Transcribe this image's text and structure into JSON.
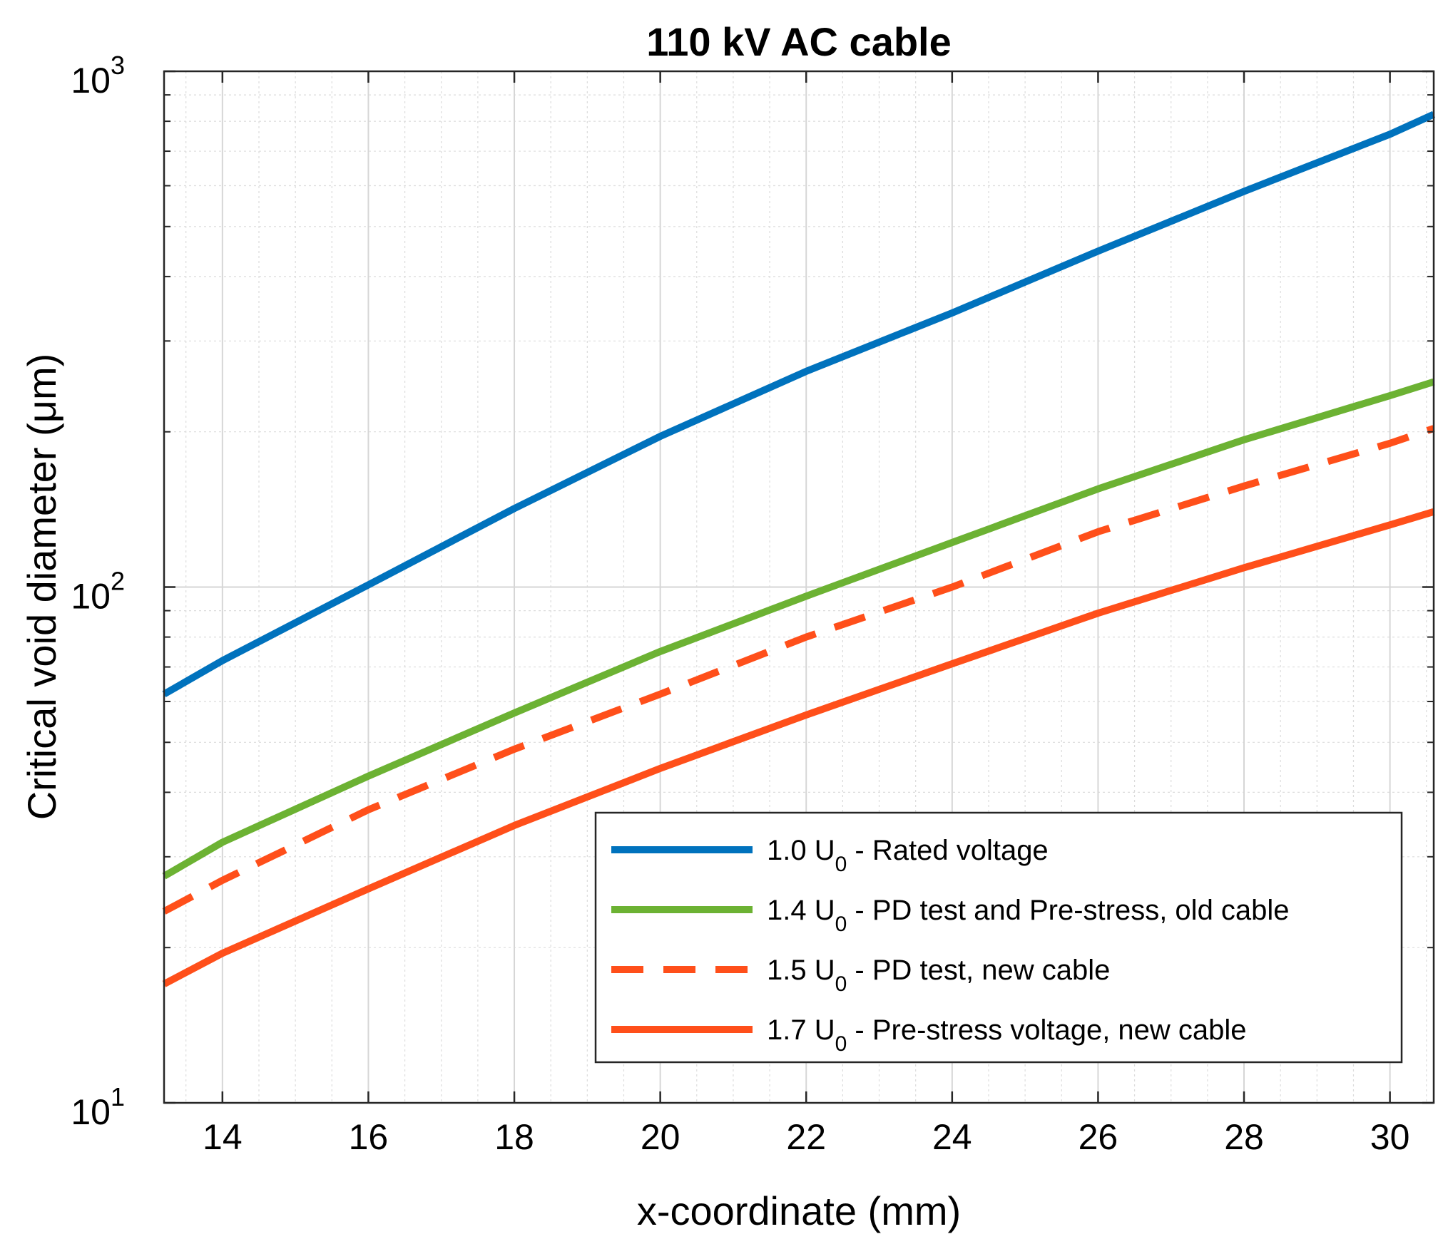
{
  "chart_data": {
    "type": "line",
    "title": "110 kV AC cable",
    "xlabel": "x-coordinate (mm)",
    "ylabel": "Critical void diameter (μm)",
    "xlim": [
      13.2,
      30.6
    ],
    "ylim": [
      10,
      1000
    ],
    "yscale": "log",
    "grid": true,
    "legend_position": "bottom-right",
    "xticks": [
      14,
      16,
      18,
      20,
      22,
      24,
      26,
      28,
      30
    ],
    "xtick_labels": [
      "14",
      "16",
      "18",
      "20",
      "22",
      "24",
      "26",
      "28",
      "30"
    ],
    "yticks": [
      {
        "value": 10,
        "base": "10",
        "exp": "1"
      },
      {
        "value": 100,
        "base": "10",
        "exp": "2"
      },
      {
        "value": 1000,
        "base": "10",
        "exp": "3"
      }
    ],
    "x": [
      13.2,
      14,
      16,
      18,
      20,
      22,
      24,
      26,
      28,
      30,
      30.6
    ],
    "series": [
      {
        "name": "1.0 U0 - Rated voltage",
        "label_main": "1.0 U",
        "label_sub": "0",
        "label_rest": " - Rated voltage",
        "color": "#0072BD",
        "dash": "solid",
        "values": [
          62,
          72,
          101,
          142,
          196,
          262,
          340,
          448,
          585,
          755,
          825
        ]
      },
      {
        "name": "1.4 U0 - PD test and Pre-stress, old cable",
        "label_main": "1.4 U",
        "label_sub": "0",
        "label_rest": " - PD test and Pre-stress, old cable",
        "color": "#6CB233",
        "dash": "solid",
        "values": [
          27.5,
          32,
          43,
          57,
          75,
          96,
          122,
          155,
          193,
          235,
          250
        ]
      },
      {
        "name": "1.5 U0 - PD test, new cable",
        "label_main": "1.5 U",
        "label_sub": "0",
        "label_rest": " - PD test, new cable",
        "color": "#FF4F1A",
        "dash": "dashed",
        "values": [
          23.5,
          27,
          37,
          48.5,
          62,
          80,
          100,
          128,
          157,
          190,
          203
        ]
      },
      {
        "name": "1.7 U0 - Pre-stress voltage, new cable",
        "label_main": "1.7 U",
        "label_sub": "0",
        "label_rest": " - Pre-stress voltage, new cable",
        "color": "#FF4F1A",
        "dash": "solid",
        "values": [
          17,
          19.5,
          26,
          34.5,
          44.5,
          56.5,
          71,
          89,
          109,
          132,
          140
        ]
      }
    ]
  }
}
